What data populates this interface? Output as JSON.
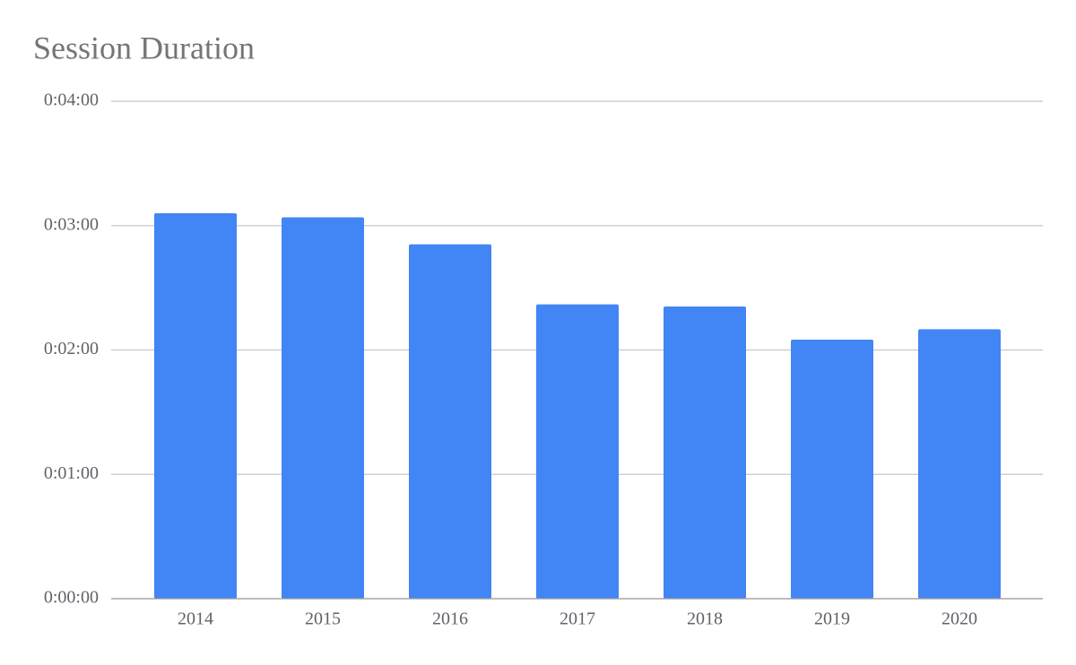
{
  "chart_data": {
    "type": "bar",
    "title": "Session Duration",
    "categories": [
      "2014",
      "2015",
      "2016",
      "2017",
      "2018",
      "2019",
      "2020"
    ],
    "values": [
      186,
      184,
      171,
      142,
      141,
      125,
      130
    ],
    "color": "#4285f4",
    "ylim": [
      0,
      240
    ],
    "yticks": [
      {
        "value": 0,
        "label": "0:00:00"
      },
      {
        "value": 60,
        "label": "0:01:00"
      },
      {
        "value": 120,
        "label": "0:02:00"
      },
      {
        "value": 180,
        "label": "0:03:00"
      },
      {
        "value": 240,
        "label": "0:04:00"
      }
    ],
    "grid": true
  }
}
